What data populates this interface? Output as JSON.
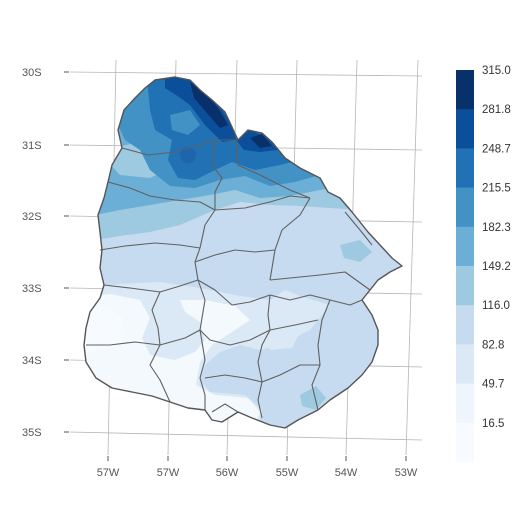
{
  "map": {
    "lat_labels": [
      "30S",
      "31S",
      "32S",
      "33S",
      "34S",
      "35S"
    ],
    "lon_labels": [
      "57W",
      "57W",
      "56W",
      "55W",
      "54W",
      "53W"
    ]
  },
  "legend": {
    "labels": [
      "315.0",
      "281.8",
      "248.7",
      "215.5",
      "182.3",
      "149.2",
      "116.0",
      "82.8",
      "49.7",
      "16.5"
    ],
    "colors": [
      "#08306b",
      "#0b4f9a",
      "#2171b5",
      "#4292c6",
      "#6baed6",
      "#9ecae1",
      "#c6dbef",
      "#dbe9f6",
      "#eef5fc",
      "#f7fbff"
    ]
  }
}
